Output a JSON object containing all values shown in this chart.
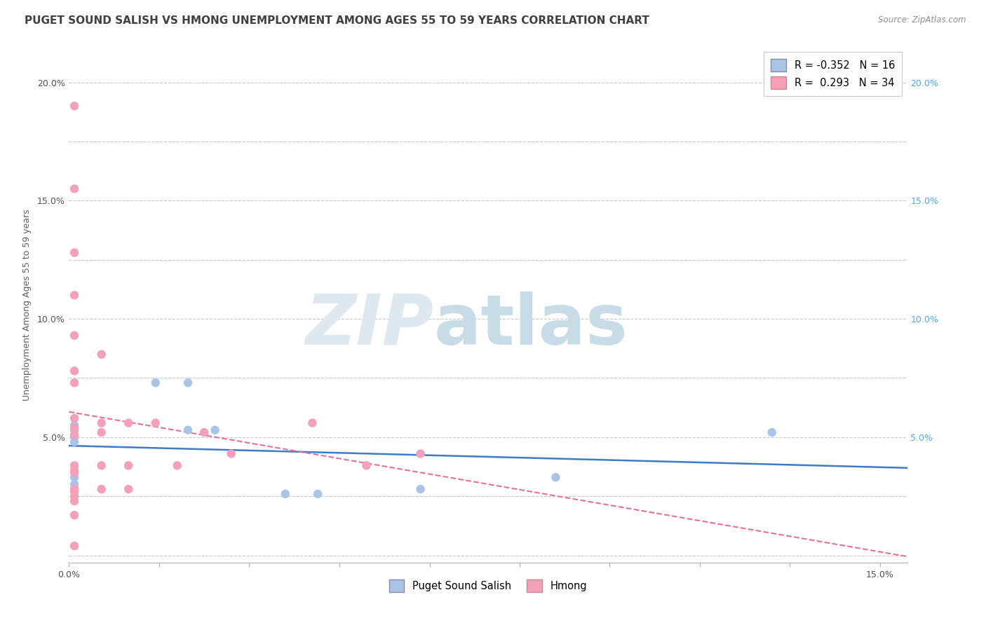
{
  "title": "PUGET SOUND SALISH VS HMONG UNEMPLOYMENT AMONG AGES 55 TO 59 YEARS CORRELATION CHART",
  "source": "Source: ZipAtlas.com",
  "ylabel": "Unemployment Among Ages 55 to 59 years",
  "xlim": [
    0.0,
    0.155
  ],
  "ylim": [
    -0.003,
    0.215
  ],
  "xticks": [
    0.0,
    0.0167,
    0.0333,
    0.05,
    0.0667,
    0.0833,
    0.1,
    0.1167,
    0.1333,
    0.15
  ],
  "xtick_labels": [
    "0.0%",
    "",
    "",
    "",
    "",
    "",
    "",
    "",
    "",
    "15.0%"
  ],
  "yticks": [
    0.0,
    0.025,
    0.05,
    0.075,
    0.1,
    0.125,
    0.15,
    0.175,
    0.2
  ],
  "ytick_labels_left": [
    "",
    "",
    "5.0%",
    "",
    "10.0%",
    "",
    "15.0%",
    "",
    "20.0%"
  ],
  "ytick_labels_right": [
    "",
    "",
    "5.0%",
    "",
    "10.0%",
    "",
    "15.0%",
    "",
    "20.0%"
  ],
  "blue_r": -0.352,
  "blue_n": 16,
  "pink_r": 0.293,
  "pink_n": 34,
  "blue_scatter": [
    [
      0.001,
      0.055
    ],
    [
      0.001,
      0.05
    ],
    [
      0.001,
      0.033
    ],
    [
      0.001,
      0.03
    ],
    [
      0.001,
      0.028
    ],
    [
      0.016,
      0.073
    ],
    [
      0.022,
      0.073
    ],
    [
      0.022,
      0.053
    ],
    [
      0.027,
      0.053
    ],
    [
      0.04,
      0.026
    ],
    [
      0.046,
      0.026
    ],
    [
      0.065,
      0.028
    ],
    [
      0.09,
      0.033
    ],
    [
      0.13,
      0.052
    ],
    [
      0.001,
      0.048
    ],
    [
      0.001,
      0.053
    ]
  ],
  "pink_scatter": [
    [
      0.001,
      0.19
    ],
    [
      0.001,
      0.155
    ],
    [
      0.001,
      0.128
    ],
    [
      0.001,
      0.093
    ],
    [
      0.001,
      0.078
    ],
    [
      0.001,
      0.073
    ],
    [
      0.001,
      0.058
    ],
    [
      0.001,
      0.054
    ],
    [
      0.001,
      0.051
    ],
    [
      0.001,
      0.038
    ],
    [
      0.001,
      0.036
    ],
    [
      0.001,
      0.035
    ],
    [
      0.001,
      0.028
    ],
    [
      0.001,
      0.027
    ],
    [
      0.001,
      0.025
    ],
    [
      0.001,
      0.023
    ],
    [
      0.001,
      0.017
    ],
    [
      0.006,
      0.085
    ],
    [
      0.006,
      0.056
    ],
    [
      0.006,
      0.052
    ],
    [
      0.006,
      0.038
    ],
    [
      0.006,
      0.028
    ],
    [
      0.011,
      0.056
    ],
    [
      0.011,
      0.038
    ],
    [
      0.011,
      0.028
    ],
    [
      0.016,
      0.056
    ],
    [
      0.02,
      0.038
    ],
    [
      0.025,
      0.052
    ],
    [
      0.03,
      0.043
    ],
    [
      0.045,
      0.056
    ],
    [
      0.055,
      0.038
    ],
    [
      0.065,
      0.043
    ],
    [
      0.001,
      0.11
    ],
    [
      0.001,
      0.004
    ]
  ],
  "blue_color": "#aac4e8",
  "pink_color": "#f4a0b8",
  "blue_line_color": "#3d7cc9",
  "pink_line_color": "#e87090",
  "grid_color": "#c8c8c8",
  "bg_color": "#ffffff",
  "title_color": "#404040",
  "source_color": "#909090",
  "right_tick_color": "#4da6ff",
  "watermark_zip_color": "#dde8f0",
  "watermark_atlas_color": "#c8dce8"
}
